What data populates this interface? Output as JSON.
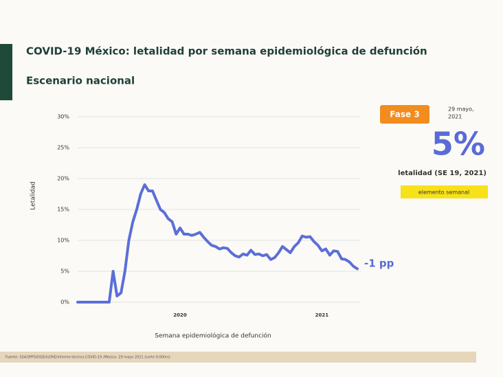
{
  "chart_data": {
    "type": "line",
    "title": "COVID-19 México: letalidad por semana epidemiológica de defunción",
    "subtitle": "Escenario nacional",
    "y_label": "Letalidad",
    "x_label": "Semana epidemiológica de defunción",
    "categories": [
      null,
      null,
      null,
      null,
      null,
      null,
      null,
      null,
      null,
      null,
      null,
      null,
      null,
      null,
      null,
      null,
      null,
      null,
      null,
      null,
      null,
      null,
      null,
      null,
      null,
      null,
      "2020",
      null,
      null,
      null,
      null,
      null,
      null,
      null,
      null,
      null,
      null,
      null,
      null,
      null,
      null,
      null,
      null,
      null,
      null,
      null,
      null,
      null,
      null,
      null,
      null,
      null,
      null,
      null,
      null,
      null,
      null,
      null,
      null,
      null,
      null,
      null,
      "2021",
      null,
      null,
      null,
      null,
      null,
      null,
      null,
      null,
      null
    ],
    "values": [
      0,
      0,
      0,
      0,
      0,
      0,
      0,
      0,
      0,
      5,
      1,
      1.5,
      5,
      10,
      13,
      15,
      17.5,
      19,
      18,
      18,
      16.5,
      15,
      14.5,
      13.5,
      13,
      11,
      12,
      11,
      11,
      10.8,
      11,
      11.3,
      10.5,
      9.8,
      9.2,
      9,
      8.6,
      8.8,
      8.7,
      8,
      7.5,
      7.3,
      7.8,
      7.6,
      8.4,
      7.7,
      7.8,
      7.5,
      7.7,
      6.9,
      7.2,
      8,
      9,
      8.5,
      8,
      9,
      9.6,
      10.7,
      10.5,
      10.6,
      9.8,
      9.2,
      8.3,
      8.6,
      7.6,
      8.3,
      8.2,
      7,
      6.9,
      6.5,
      5.8,
      5.4
    ],
    "color": "#5b6fd8",
    "ylim": [
      0,
      30
    ],
    "yticks": [
      {
        "value": 0,
        "label": "0%"
      },
      {
        "value": 5,
        "label": "5%"
      },
      {
        "value": 10,
        "label": "10%"
      },
      {
        "value": 15,
        "label": "15%"
      },
      {
        "value": 20,
        "label": "20%"
      },
      {
        "value": 25,
        "label": "25%"
      },
      {
        "value": 30,
        "label": "30%"
      }
    ],
    "grid": true,
    "annotations": {
      "phase": "Fase 3",
      "date_lines": [
        "29 mayo,",
        "2021"
      ],
      "big_value": "5%",
      "big_caption": "letalidad (SE 19, 2021)",
      "legend_box": "elemento semanal",
      "change": "-1 pp"
    },
    "source": "Fuente: SSA/SPPS/DGE/InDRE/Informe técnico.COVID-19 /México- 29 mayo 2021 (corte 9:00hrs)"
  }
}
